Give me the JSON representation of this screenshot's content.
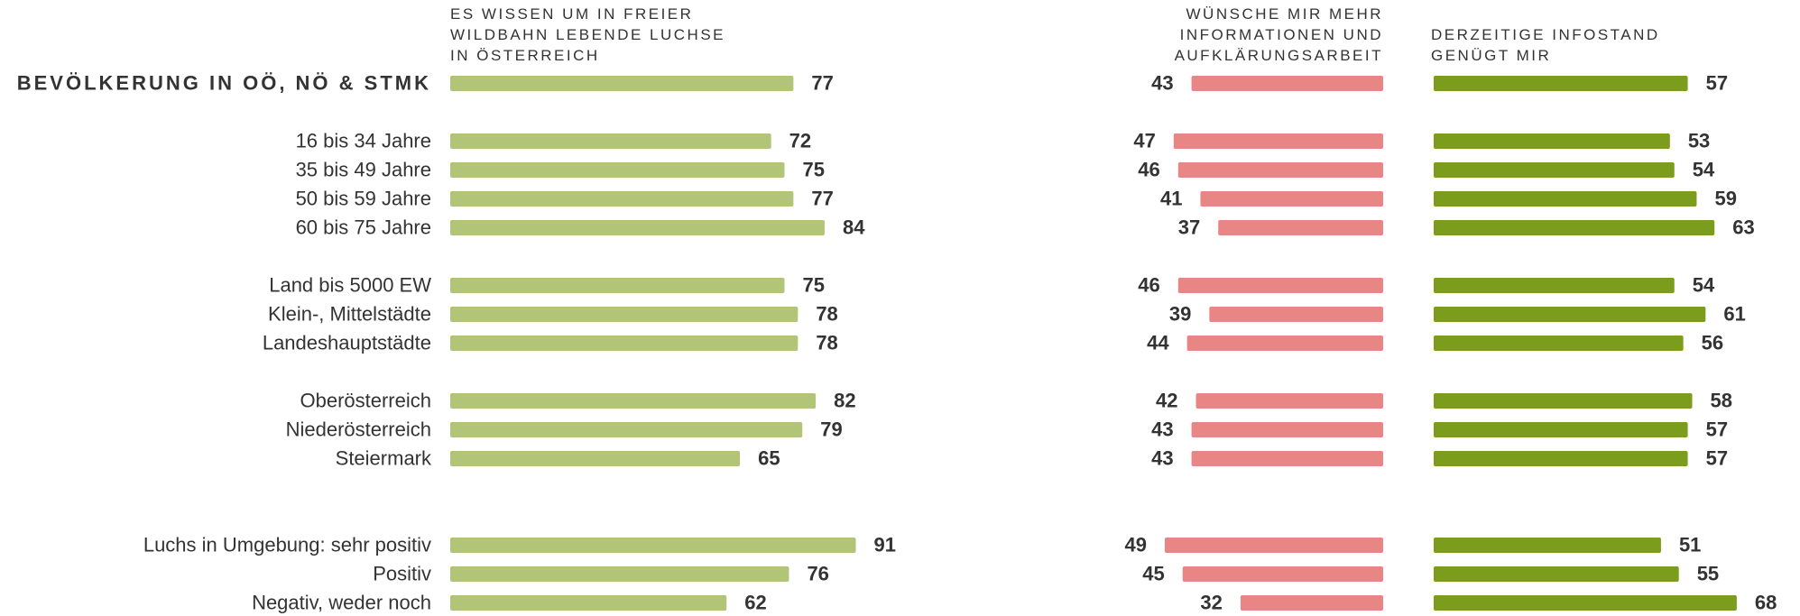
{
  "chart_data": {
    "type": "bar",
    "categories": [
      "BEVÖLKERUNG IN OÖ, NÖ & STMK",
      "16 bis 34 Jahre",
      "35 bis 49 Jahre",
      "50 bis 59 Jahre",
      "60 bis 75 Jahre",
      "Land bis 5000 EW",
      "Klein-, Mittelstädte",
      "Landeshauptstädte",
      "Oberösterreich",
      "Niederösterreich",
      "Steiermark",
      "Luchs in Umgebung: sehr positiv",
      "Positiv",
      "Negativ, weder noch"
    ],
    "series": [
      {
        "name": "ES WISSEN UM IN FREIER\nWILDBAHN LEBENDE LUCHSE\nIN ÖSTERREICH",
        "color": "#b1c477",
        "values": [
          77,
          72,
          75,
          77,
          84,
          75,
          78,
          78,
          82,
          79,
          65,
          91,
          76,
          62
        ]
      },
      {
        "name": "WÜNSCHE MIR MEHR\nINFORMATIONEN UND\nAUFKLÄRUNGSARBEIT",
        "color": "#e88685",
        "values": [
          43,
          47,
          46,
          41,
          37,
          46,
          39,
          44,
          42,
          43,
          43,
          49,
          45,
          32
        ]
      },
      {
        "name": "DERZEITIGE INFOSTAND\nGENÜGT MIR",
        "color": "#7b9c1c",
        "values": [
          57,
          53,
          54,
          59,
          63,
          54,
          61,
          56,
          58,
          57,
          57,
          51,
          55,
          68
        ]
      }
    ]
  }
}
